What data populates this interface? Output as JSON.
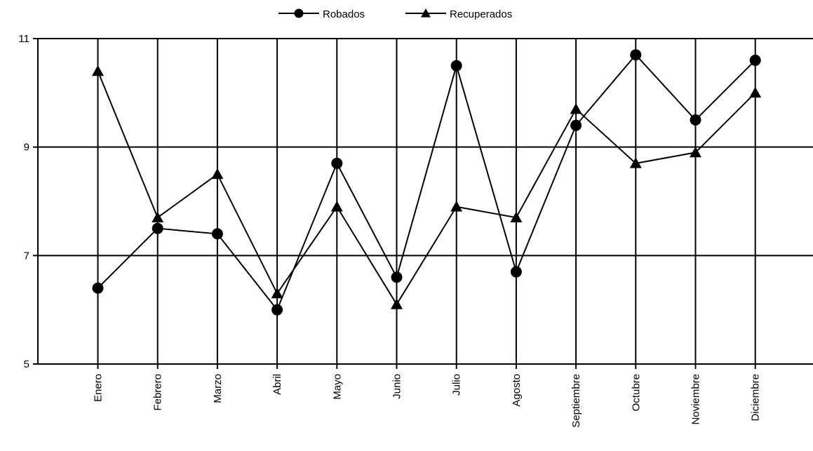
{
  "chart_data": {
    "type": "line",
    "title": "",
    "xlabel": "",
    "ylabel": "",
    "ylim": [
      5,
      11
    ],
    "yticks": [
      5,
      7,
      9,
      11
    ],
    "grid": "vertical at categories, horizontal at y ticks",
    "legend_placement": "top-center",
    "categories": [
      "Enero",
      "Febrero",
      "Marzo",
      "Abril",
      "Mayo",
      "Junio",
      "Julio",
      "Agosto",
      "Septiembre",
      "Octubre",
      "Noviembre",
      "Diciembre"
    ],
    "series": [
      {
        "name": "Robados",
        "marker": "circle",
        "color": "#000000",
        "values": [
          6.4,
          7.5,
          7.4,
          6.0,
          8.7,
          6.6,
          10.5,
          6.7,
          9.4,
          10.7,
          9.5,
          10.6
        ]
      },
      {
        "name": "Recuperados",
        "marker": "triangle",
        "color": "#000000",
        "values": [
          10.4,
          7.7,
          8.5,
          6.3,
          7.9,
          6.1,
          7.9,
          7.7,
          9.7,
          8.7,
          8.9,
          10.0
        ]
      }
    ]
  }
}
